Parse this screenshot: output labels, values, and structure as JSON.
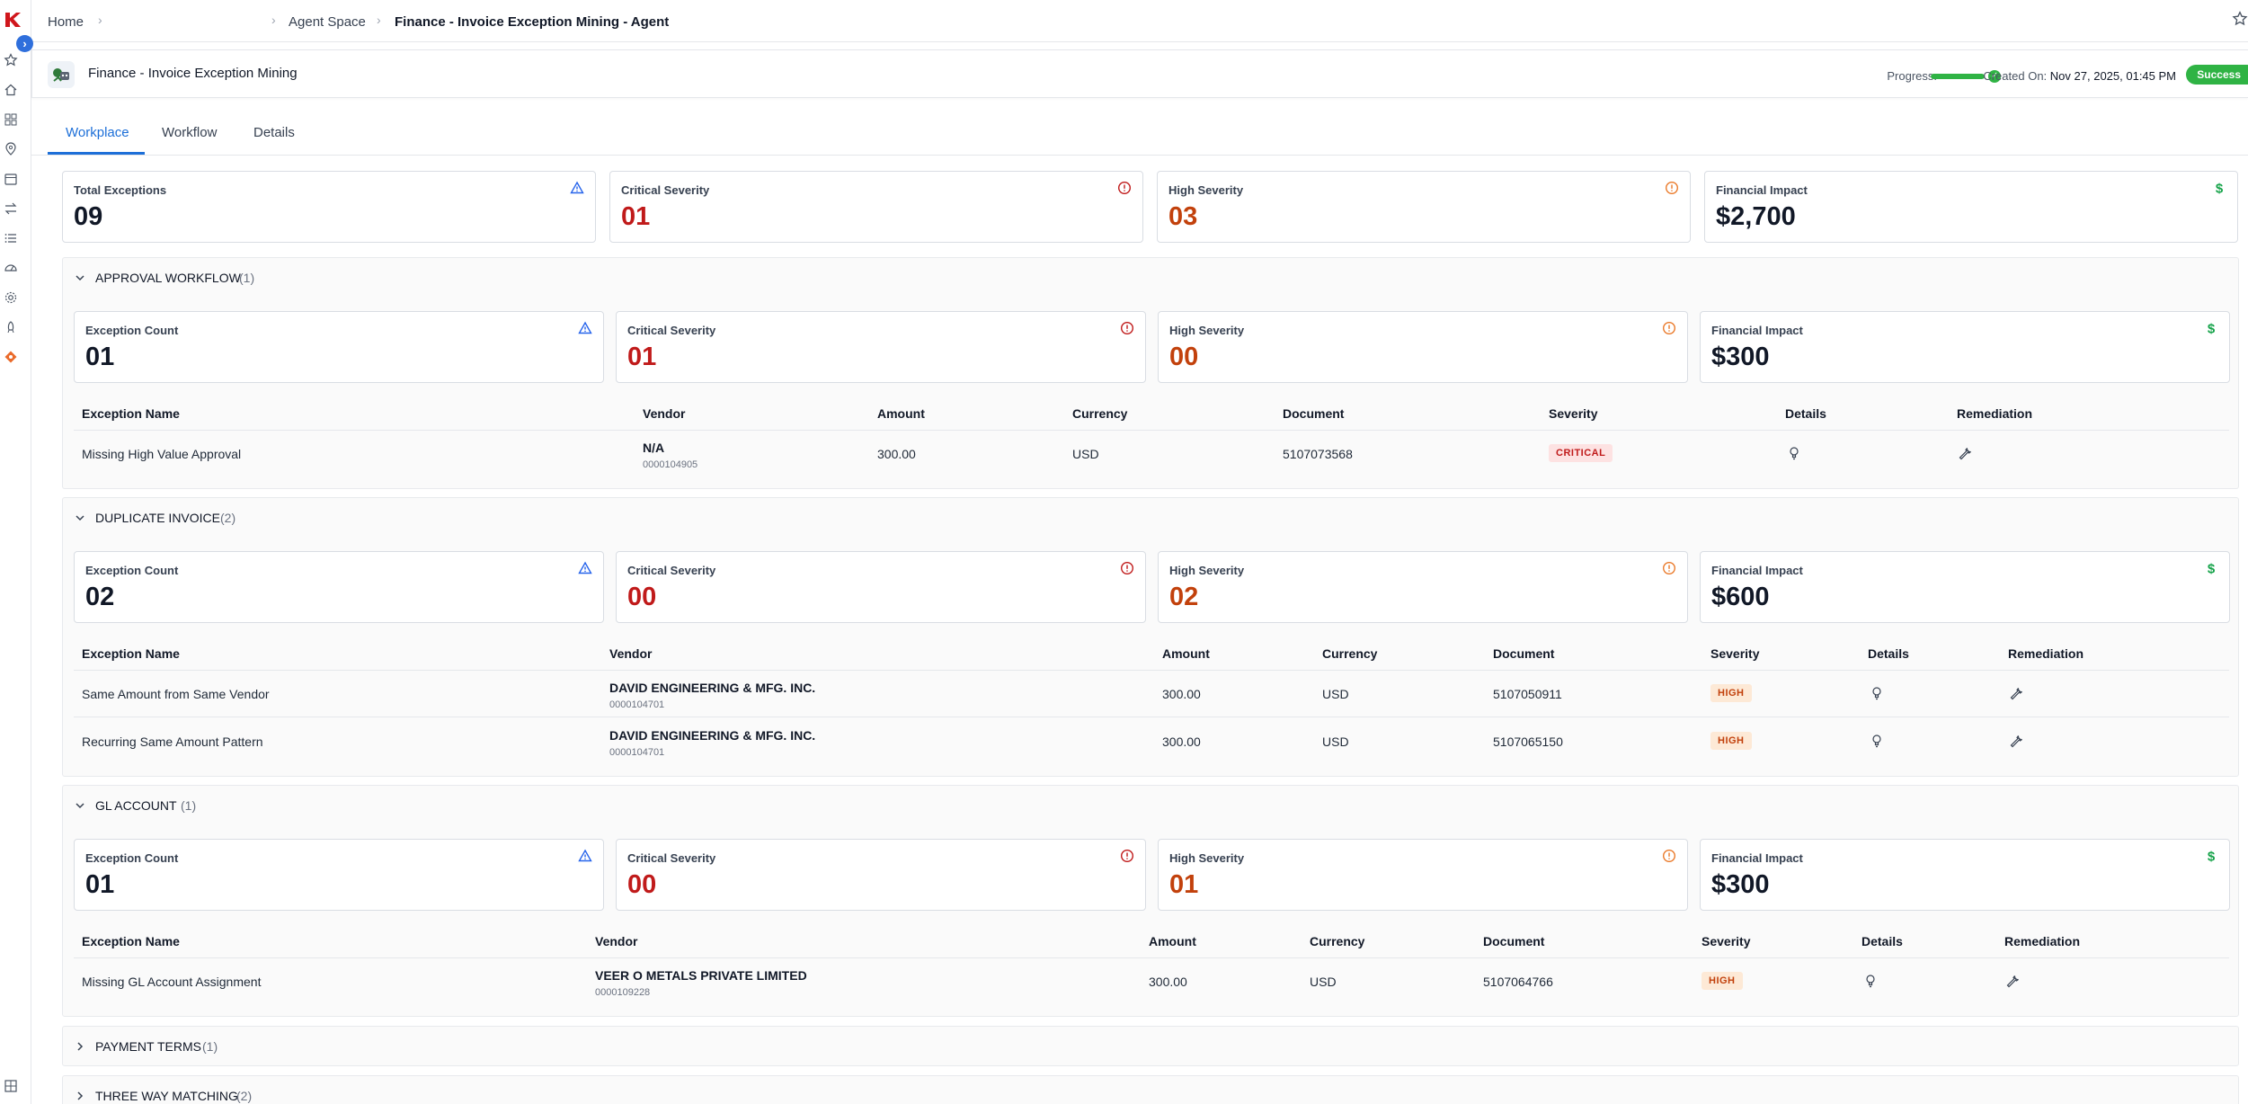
{
  "breadcrumb": {
    "home": "Home",
    "agent_space": "Agent Space",
    "current": "Finance - Invoice Exception Mining - Agent"
  },
  "agent": {
    "title": "Finance - Invoice Exception Mining",
    "progress_label": "Progress:",
    "progress_fraction": 1.0,
    "created_label": "Created On:",
    "created_value": "Nov 27, 2025, 01:45 PM",
    "status": "Success"
  },
  "tabs": [
    "Workplace",
    "Workflow",
    "Details"
  ],
  "summary": {
    "total_label": "Total Exceptions",
    "total_value": "09",
    "critical_label": "Critical Severity",
    "critical_value": "01",
    "high_label": "High Severity",
    "high_value": "03",
    "financial_label": "Financial Impact",
    "financial_value": "$2,700"
  },
  "sections": [
    {
      "title": "APPROVAL WORKFLOW",
      "count": "(1)",
      "expanded": true,
      "cards": {
        "count_label": "Exception Count",
        "count_value": "01",
        "critical_label": "Critical Severity",
        "critical_value": "01",
        "high_label": "High Severity",
        "high_value": "00",
        "fin_label": "Financial Impact",
        "fin_value": "$300"
      },
      "headers": [
        "Exception Name",
        "Vendor",
        "Amount",
        "Currency",
        "Document",
        "Severity",
        "Details",
        "Remediation"
      ],
      "rows": [
        {
          "name": "Missing High Value Approval",
          "vendor": "N/A",
          "vendor_id": "0000104905",
          "amount": "300.00",
          "currency": "USD",
          "document": "5107073568",
          "severity": "CRITICAL"
        }
      ]
    },
    {
      "title": "DUPLICATE INVOICE",
      "count": "(2)",
      "expanded": true,
      "cards": {
        "count_label": "Exception Count",
        "count_value": "02",
        "critical_label": "Critical Severity",
        "critical_value": "00",
        "high_label": "High Severity",
        "high_value": "02",
        "fin_label": "Financial Impact",
        "fin_value": "$600"
      },
      "headers": [
        "Exception Name",
        "Vendor",
        "Amount",
        "Currency",
        "Document",
        "Severity",
        "Details",
        "Remediation"
      ],
      "rows": [
        {
          "name": "Same Amount from Same Vendor",
          "vendor": "DAVID ENGINEERING & MFG. INC.",
          "vendor_id": "0000104701",
          "amount": "300.00",
          "currency": "USD",
          "document": "5107050911",
          "severity": "HIGH"
        },
        {
          "name": "Recurring Same Amount Pattern",
          "vendor": "DAVID ENGINEERING & MFG. INC.",
          "vendor_id": "0000104701",
          "amount": "300.00",
          "currency": "USD",
          "document": "5107065150",
          "severity": "HIGH"
        }
      ]
    },
    {
      "title": "GL ACCOUNT",
      "count": "(1)",
      "expanded": true,
      "cards": {
        "count_label": "Exception Count",
        "count_value": "01",
        "critical_label": "Critical Severity",
        "critical_value": "00",
        "high_label": "High Severity",
        "high_value": "01",
        "fin_label": "Financial Impact",
        "fin_value": "$300"
      },
      "headers": [
        "Exception Name",
        "Vendor",
        "Amount",
        "Currency",
        "Document",
        "Severity",
        "Details",
        "Remediation"
      ],
      "rows": [
        {
          "name": "Missing GL Account Assignment",
          "vendor": "VEER O METALS PRIVATE LIMITED",
          "vendor_id": "0000109228",
          "amount": "300.00",
          "currency": "USD",
          "document": "5107064766",
          "severity": "HIGH"
        }
      ]
    },
    {
      "title": "PAYMENT TERMS",
      "count": "(1)",
      "expanded": false
    },
    {
      "title": "THREE WAY MATCHING",
      "count": "(2)",
      "expanded": false
    }
  ],
  "colors": {
    "accent": "#1d6fd8",
    "critical": "#c01a1a",
    "high": "#c2410c",
    "success": "#2fb344",
    "money": "#16a34a",
    "count_icon": "#2563eb"
  },
  "icons": {
    "rail": [
      "star-icon",
      "home-icon",
      "grid-icon",
      "location-icon",
      "calendar-icon",
      "transfer-icon",
      "list-icon",
      "dashboard-icon",
      "settings-icon",
      "rocket-icon",
      "agent-icon",
      "apps-icon"
    ],
    "card": [
      "triangle-warning-icon",
      "critical-alert-icon",
      "high-alert-icon",
      "dollar-icon"
    ],
    "table": [
      "lightbulb-icon",
      "wrench-icon"
    ]
  }
}
